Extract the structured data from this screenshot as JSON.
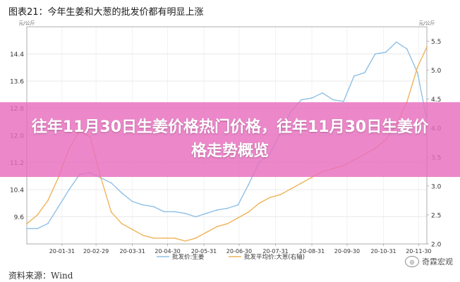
{
  "figure": {
    "title": "图表21：今年生姜和大葱的批发价都有明显上涨",
    "source": "资料来源：Wind",
    "watermark": "奇霖宏观"
  },
  "banner": {
    "text": "往年11月30日生姜价格热门价格，往年11月30日生姜价格走势概览"
  },
  "chart_data": {
    "type": "line",
    "left_axis_unit": "元/公斤",
    "right_axis_unit": "元/公斤",
    "left_ylim": [
      8.8,
      15.2
    ],
    "right_ylim": [
      2.0,
      5.75
    ],
    "left_ticks": [
      9.6,
      10.4,
      11.2,
      12.0,
      12.8,
      13.6,
      14.4
    ],
    "right_ticks": [
      2.0,
      2.5,
      3.0,
      3.5,
      4.0,
      4.5,
      5.0,
      5.5
    ],
    "x_range": [
      "2020-01-01",
      "2020-12-07"
    ],
    "x_ticks": [
      "20-01-31",
      "20-02-29",
      "20-03-31",
      "20-04-30",
      "20-05-31",
      "20-06-30",
      "20-07-31",
      "20-08-31",
      "20-09-30",
      "20-10-31",
      "20-11-30"
    ],
    "grid": true,
    "legend_position": "bottom",
    "series": [
      {
        "name": "批发价:生姜",
        "axis": "left",
        "color": "#8fc0e6",
        "x": [
          "2020-01-01",
          "2020-01-10",
          "2020-01-19",
          "2020-01-28",
          "2020-02-06",
          "2020-02-15",
          "2020-02-24",
          "2020-03-04",
          "2020-03-13",
          "2020-03-22",
          "2020-03-31",
          "2020-04-09",
          "2020-04-18",
          "2020-04-27",
          "2020-05-06",
          "2020-05-15",
          "2020-05-24",
          "2020-06-02",
          "2020-06-11",
          "2020-06-20",
          "2020-06-29",
          "2020-07-08",
          "2020-07-17",
          "2020-07-26",
          "2020-08-04",
          "2020-08-13",
          "2020-08-22",
          "2020-08-31",
          "2020-09-09",
          "2020-09-18",
          "2020-09-27",
          "2020-10-06",
          "2020-10-15",
          "2020-10-24",
          "2020-11-02",
          "2020-11-11",
          "2020-11-20",
          "2020-11-29",
          "2020-12-07"
        ],
        "values": [
          9.25,
          9.25,
          9.4,
          9.9,
          10.4,
          10.85,
          10.9,
          10.75,
          10.6,
          10.3,
          10.05,
          9.95,
          9.9,
          9.75,
          9.75,
          9.7,
          9.6,
          9.7,
          9.8,
          9.85,
          9.95,
          10.55,
          11.2,
          11.45,
          12.05,
          12.7,
          13.05,
          13.1,
          13.25,
          13.05,
          13.0,
          13.75,
          13.85,
          14.4,
          14.45,
          14.75,
          14.55,
          13.85,
          12.45
        ]
      },
      {
        "name": "批发平均价:大葱(右轴)",
        "axis": "right",
        "color": "#f0b35a",
        "x": [
          "2020-01-01",
          "2020-01-10",
          "2020-01-19",
          "2020-01-28",
          "2020-02-06",
          "2020-02-15",
          "2020-02-24",
          "2020-03-04",
          "2020-03-13",
          "2020-03-22",
          "2020-03-31",
          "2020-04-09",
          "2020-04-18",
          "2020-04-27",
          "2020-05-06",
          "2020-05-15",
          "2020-05-24",
          "2020-06-02",
          "2020-06-11",
          "2020-06-20",
          "2020-06-29",
          "2020-07-08",
          "2020-07-17",
          "2020-07-26",
          "2020-08-04",
          "2020-08-13",
          "2020-08-22",
          "2020-08-31",
          "2020-09-09",
          "2020-09-18",
          "2020-09-27",
          "2020-10-06",
          "2020-10-15",
          "2020-10-24",
          "2020-11-02",
          "2020-11-11",
          "2020-11-20",
          "2020-11-29",
          "2020-12-07"
        ],
        "values": [
          2.35,
          2.5,
          2.75,
          3.15,
          3.65,
          3.95,
          3.85,
          3.15,
          2.55,
          2.35,
          2.25,
          2.15,
          2.1,
          2.1,
          2.1,
          2.05,
          2.1,
          2.2,
          2.3,
          2.35,
          2.45,
          2.55,
          2.7,
          2.8,
          2.85,
          2.95,
          3.05,
          3.15,
          3.25,
          3.3,
          3.35,
          3.45,
          3.55,
          3.65,
          3.8,
          4.05,
          4.45,
          5.05,
          5.4
        ]
      }
    ]
  }
}
